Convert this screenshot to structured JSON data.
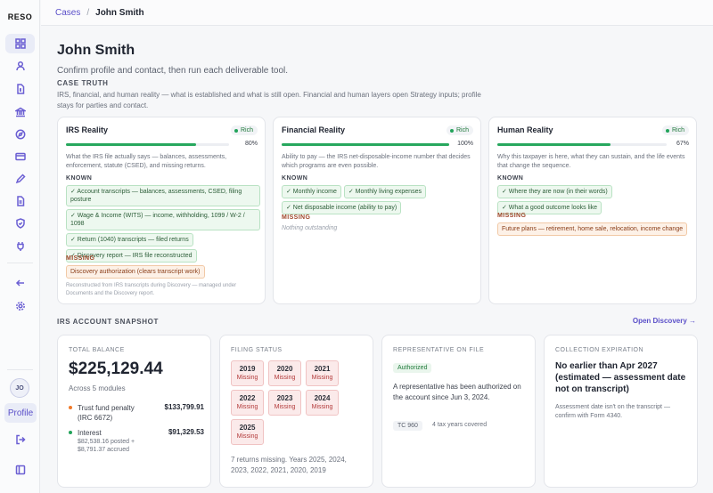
{
  "app": {
    "logo": "RESO",
    "avatar_initials": "JO",
    "profile_label": "Profile"
  },
  "breadcrumb": {
    "cases": "Cases",
    "separator": "/",
    "current": "John Smith"
  },
  "page": {
    "title": "John Smith",
    "subtitle": "Confirm profile and contact, then run each deliverable tool.",
    "case_truth_label": "CASE TRUTH",
    "case_truth_desc": "IRS, financial, and human reality — what is established and what is still open. Financial and human layers open Strategy inputs; profile stays for parties and contact."
  },
  "reality_cards": [
    {
      "title": "IRS Reality",
      "badge": "Rich",
      "progress": 0.8,
      "progress_label": "80%",
      "desc": "What the IRS file actually says — balances, assessments, enforcement, statute (CSED), and missing returns.",
      "known_label": "KNOWN",
      "known": [
        "✓ Account transcripts — balances, assessments, CSED, filing posture",
        "✓ Wage & Income (WITS) — income, withholding, 1099 / W-2 / 1098",
        "✓ Return (1040) transcripts — filed returns",
        "✓ Discovery report — IRS file reconstructed"
      ],
      "missing_label": "MISSING",
      "missing": [
        "Discovery authorization (clears transcript work)"
      ],
      "footnote": "Reconstructed from IRS transcripts during Discovery — managed under Documents and the Discovery report."
    },
    {
      "title": "Financial Reality",
      "badge": "Rich",
      "progress": 1.0,
      "progress_label": "100%",
      "desc": "Ability to pay — the IRS net-disposable-income number that decides which programs are even possible.",
      "known_label": "KNOWN",
      "known": [
        "✓ Monthly income",
        "✓ Monthly living expenses",
        "✓ Net disposable income (ability to pay)"
      ],
      "missing_label": "MISSING",
      "nothing_outstanding": "Nothing outstanding"
    },
    {
      "title": "Human Reality",
      "badge": "Rich",
      "progress": 0.67,
      "progress_label": "67%",
      "desc": "Why this taxpayer is here, what they can sustain, and the life events that change the sequence.",
      "known_label": "KNOWN",
      "known": [
        "✓ Where they are now (in their words)",
        "✓ What a good outcome looks like"
      ],
      "missing_label": "MISSING",
      "missing": [
        "Future plans — retirement, home sale, relocation, income change"
      ]
    }
  ],
  "snapshot": {
    "label": "IRS ACCOUNT SNAPSHOT",
    "open_discovery": "Open Discovery →",
    "total_balance": {
      "label": "TOTAL BALANCE",
      "amount": "$225,129.44",
      "modules": "Across 5 modules",
      "items": [
        {
          "name": "Trust fund penalty (IRC 6672)",
          "amount": "$133,799.91",
          "color": "#f07a2a"
        },
        {
          "name": "Interest",
          "amount": "$91,329.53",
          "sub": "$82,538.16 posted + $8,791.37 accrued",
          "color": "#22a35a"
        }
      ]
    },
    "filing_status": {
      "label": "FILING STATUS",
      "years": [
        {
          "year": "2019",
          "status": "Missing"
        },
        {
          "year": "2020",
          "status": "Missing"
        },
        {
          "year": "2021",
          "status": "Missing"
        },
        {
          "year": "2022",
          "status": "Missing"
        },
        {
          "year": "2023",
          "status": "Missing"
        },
        {
          "year": "2024",
          "status": "Missing"
        },
        {
          "year": "2025",
          "status": "Missing"
        }
      ],
      "note": "7 returns missing. Years 2025, 2024, 2023, 2022, 2021, 2020, 2019"
    },
    "representative": {
      "label": "REPRESENTATIVE ON FILE",
      "badge": "Authorized",
      "text": "A representative has been authorized on the account since Jun 3, 2024.",
      "form": "TC 960",
      "years_covered": "4 tax years covered"
    },
    "collection": {
      "label": "COLLECTION EXPIRATION",
      "headline": "No earlier than Apr 2027 (estimated — assessment date not on transcript)",
      "note": "Assessment date isn't on the transcript — confirm with Form 4340."
    }
  }
}
